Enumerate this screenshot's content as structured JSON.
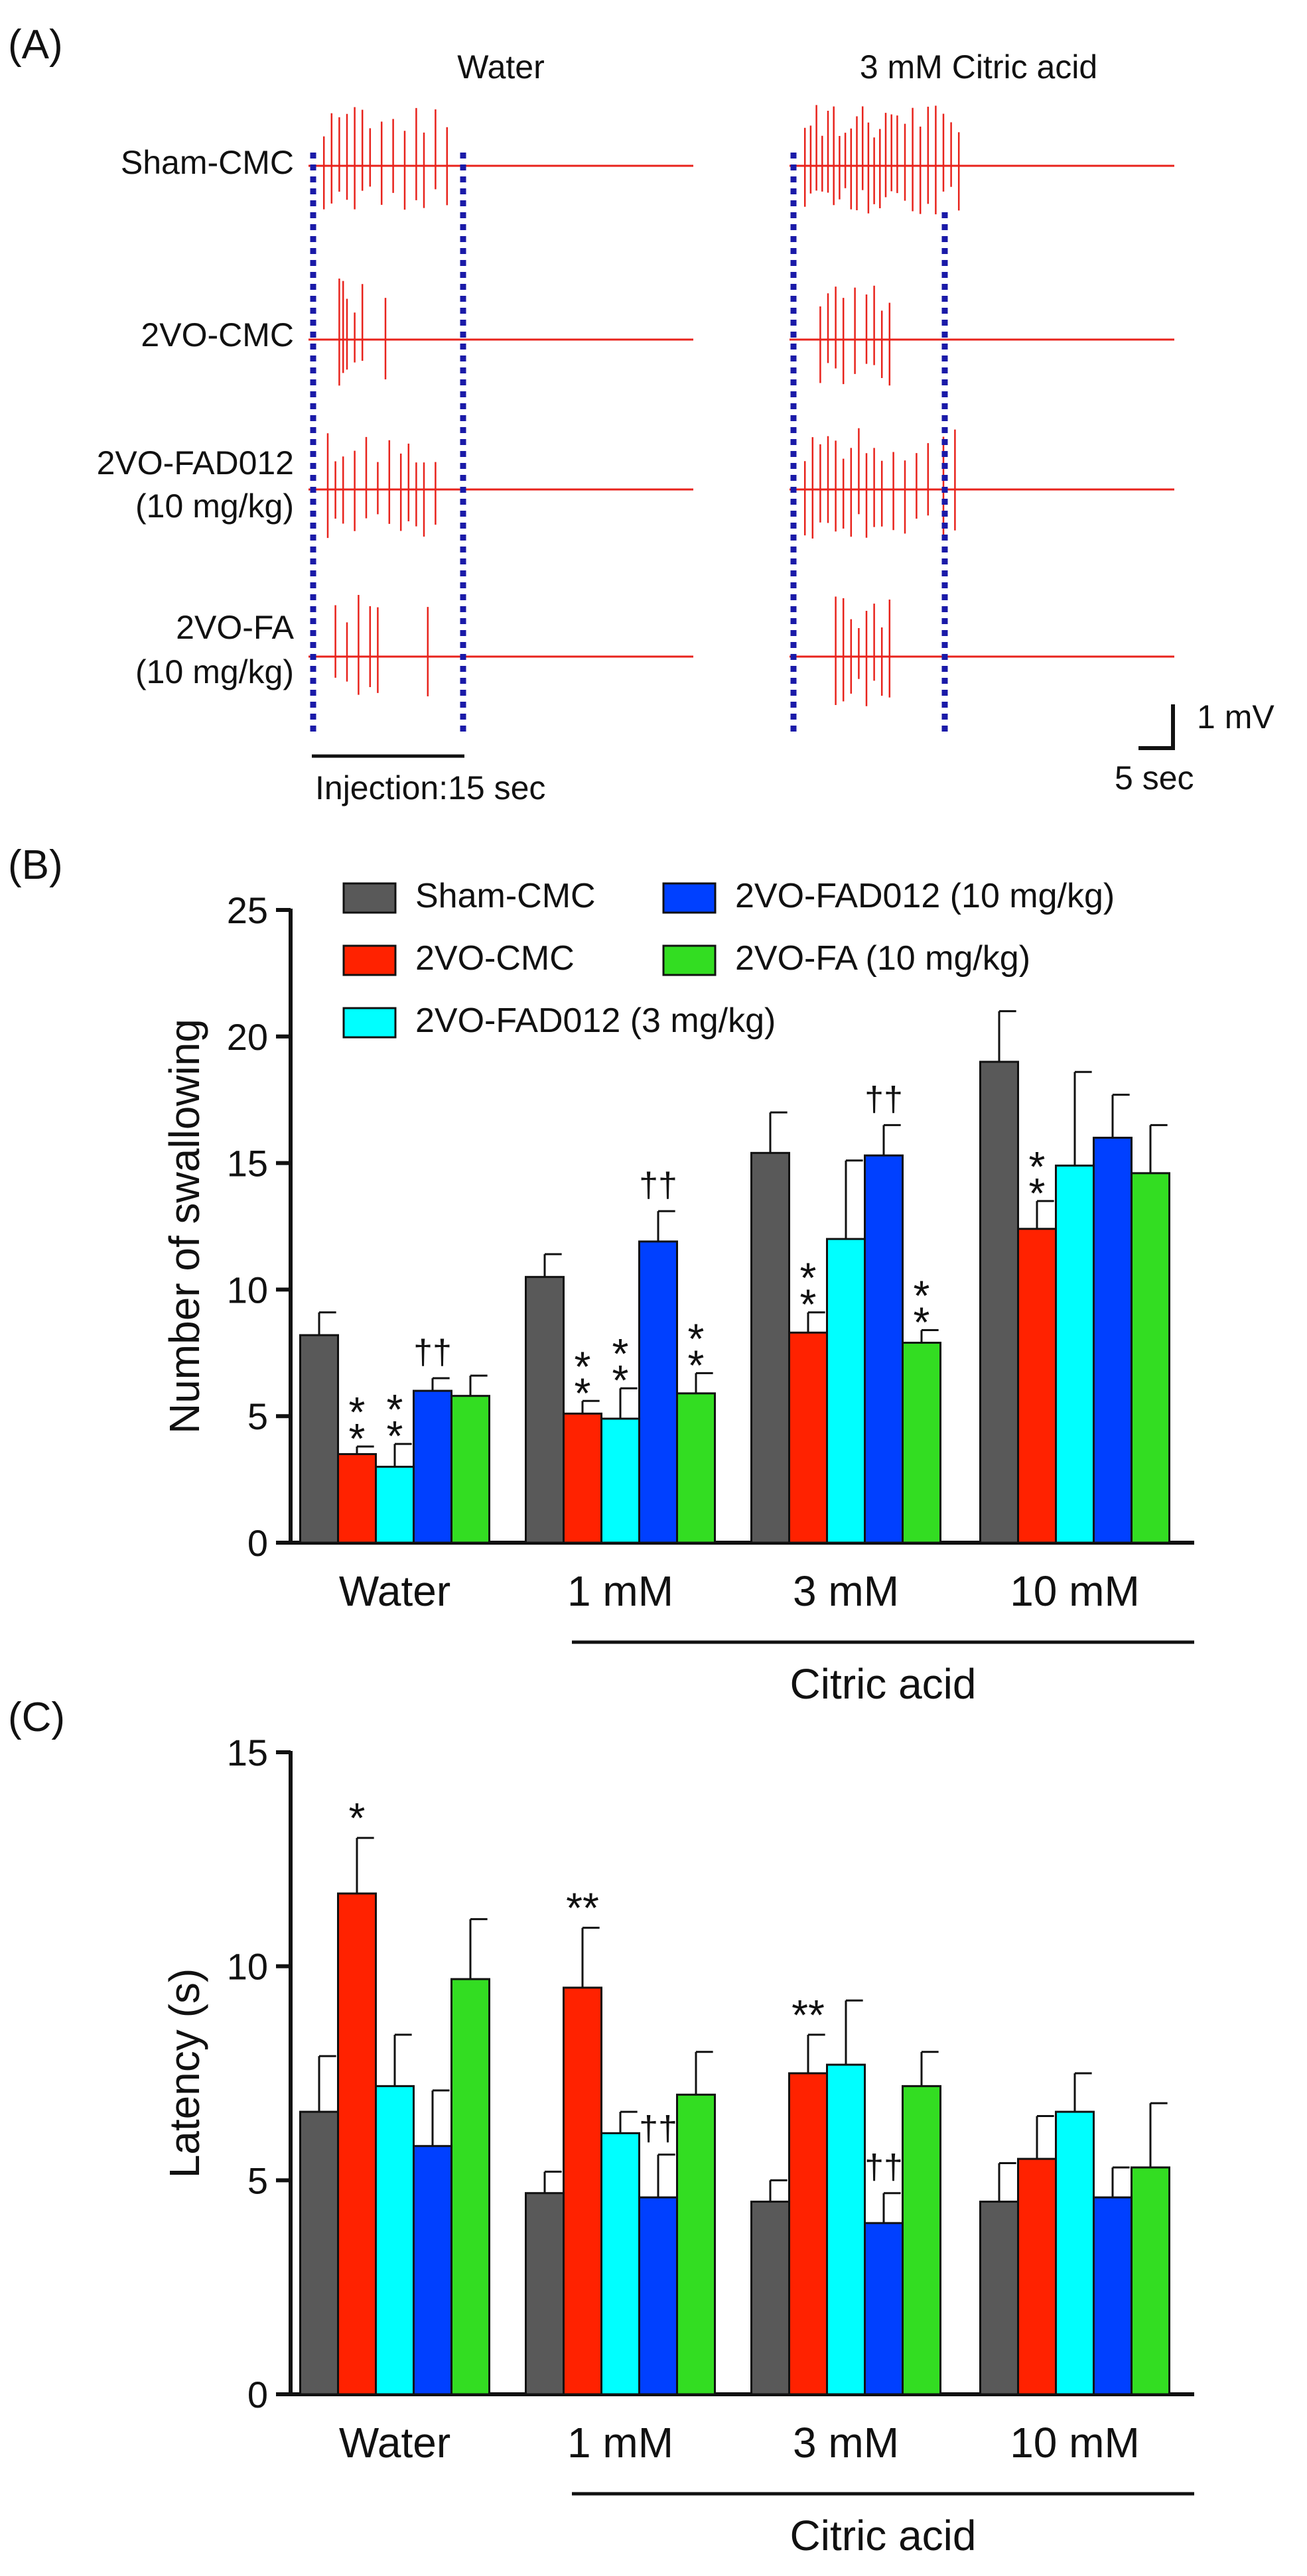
{
  "panel_a": {
    "label": "(A)",
    "columns": [
      "Water",
      "3 mM Citric acid"
    ],
    "rows": [
      {
        "line1": "Sham-CMC",
        "line2": ""
      },
      {
        "line1": "2VO-CMC",
        "line2": ""
      },
      {
        "line1": "2VO-FAD012",
        "line2": "(10 mg/kg)"
      },
      {
        "line1": "2VO-FA",
        "line2": "(10 mg/kg)"
      }
    ],
    "injection_label": "Injection:15 sec",
    "scale_voltage": "1 mV",
    "scale_time": "5 sec",
    "trace_color": "#e8231c",
    "marker_color": "#1a1aa8"
  },
  "panel_b": {
    "label": "(B)"
  },
  "panel_c": {
    "label": "(C)"
  },
  "chart_data": [
    {
      "type": "bar",
      "panel": "(B)",
      "ylabel": "Number of swallowing",
      "xlabel": "",
      "ylim": [
        0,
        25
      ],
      "yticks": [
        0,
        5,
        10,
        15,
        20,
        25
      ],
      "categories": [
        "Water",
        "1 mM",
        "3 mM",
        "10 mM"
      ],
      "group_label": "Citric acid",
      "legend": "top-left",
      "series": [
        {
          "name": "Sham-CMC",
          "color": "#595959",
          "values": [
            8.2,
            10.5,
            15.4,
            19.0
          ],
          "errors": [
            0.9,
            0.9,
            1.6,
            2.0
          ]
        },
        {
          "name": "2VO-CMC",
          "color": "#ff2200",
          "values": [
            3.5,
            5.1,
            8.3,
            12.4
          ],
          "errors": [
            0.3,
            0.5,
            0.8,
            1.1
          ]
        },
        {
          "name": "2VO-FAD012 (3 mg/kg)",
          "color": "#00ffff",
          "values": [
            3.0,
            4.9,
            12.0,
            14.9
          ],
          "errors": [
            0.9,
            1.2,
            3.1,
            3.7
          ]
        },
        {
          "name": "2VO-FAD012 (10 mg/kg)",
          "color": "#0040ff",
          "values": [
            6.0,
            11.9,
            15.3,
            16.0
          ],
          "errors": [
            0.5,
            1.2,
            1.2,
            1.7
          ]
        },
        {
          "name": "2VO-FA (10 mg/kg)",
          "color": "#33dd22",
          "values": [
            5.8,
            5.9,
            7.9,
            14.6
          ],
          "errors": [
            0.8,
            0.8,
            0.5,
            1.9
          ]
        }
      ],
      "annotations": [
        {
          "category": 0,
          "series": 1,
          "text": "**",
          "orientation": "vertical"
        },
        {
          "category": 0,
          "series": 2,
          "text": "**",
          "orientation": "vertical"
        },
        {
          "category": 0,
          "series": 3,
          "text": "††",
          "orientation": "horizontal"
        },
        {
          "category": 1,
          "series": 1,
          "text": "**",
          "orientation": "vertical"
        },
        {
          "category": 1,
          "series": 2,
          "text": "**",
          "orientation": "vertical"
        },
        {
          "category": 1,
          "series": 3,
          "text": "††",
          "orientation": "horizontal"
        },
        {
          "category": 1,
          "series": 4,
          "text": "**",
          "orientation": "vertical"
        },
        {
          "category": 2,
          "series": 1,
          "text": "**",
          "orientation": "vertical"
        },
        {
          "category": 2,
          "series": 3,
          "text": "††",
          "orientation": "horizontal"
        },
        {
          "category": 2,
          "series": 4,
          "text": "**",
          "orientation": "vertical"
        },
        {
          "category": 3,
          "series": 1,
          "text": "**",
          "orientation": "vertical"
        }
      ]
    },
    {
      "type": "bar",
      "panel": "(C)",
      "ylabel": "Latency (s)",
      "xlabel": "",
      "ylim": [
        0,
        15
      ],
      "yticks": [
        0,
        5,
        10,
        15
      ],
      "categories": [
        "Water",
        "1 mM",
        "3 mM",
        "10 mM"
      ],
      "group_label": "Citric acid",
      "series": [
        {
          "name": "Sham-CMC",
          "color": "#595959",
          "values": [
            6.6,
            4.7,
            4.5,
            4.5
          ],
          "errors": [
            1.3,
            0.5,
            0.5,
            0.9
          ]
        },
        {
          "name": "2VO-CMC",
          "color": "#ff2200",
          "values": [
            11.7,
            9.5,
            7.5,
            5.5
          ],
          "errors": [
            1.3,
            1.4,
            0.9,
            1.0
          ]
        },
        {
          "name": "2VO-FAD012 (3 mg/kg)",
          "color": "#00ffff",
          "values": [
            7.2,
            6.1,
            7.7,
            6.6
          ],
          "errors": [
            1.2,
            0.5,
            1.5,
            0.9
          ]
        },
        {
          "name": "2VO-FAD012 (10 mg/kg)",
          "color": "#0040ff",
          "values": [
            5.8,
            4.6,
            4.0,
            4.6
          ],
          "errors": [
            1.3,
            1.0,
            0.7,
            0.7
          ]
        },
        {
          "name": "2VO-FA (10 mg/kg)",
          "color": "#33dd22",
          "values": [
            9.7,
            7.0,
            7.2,
            5.3
          ],
          "errors": [
            1.4,
            1.0,
            0.8,
            1.5
          ]
        }
      ],
      "annotations": [
        {
          "category": 0,
          "series": 1,
          "text": "*",
          "orientation": "horizontal"
        },
        {
          "category": 1,
          "series": 1,
          "text": "**",
          "orientation": "horizontal"
        },
        {
          "category": 1,
          "series": 3,
          "text": "††",
          "orientation": "horizontal"
        },
        {
          "category": 2,
          "series": 1,
          "text": "**",
          "orientation": "horizontal"
        },
        {
          "category": 2,
          "series": 3,
          "text": "††",
          "orientation": "horizontal"
        }
      ]
    }
  ]
}
